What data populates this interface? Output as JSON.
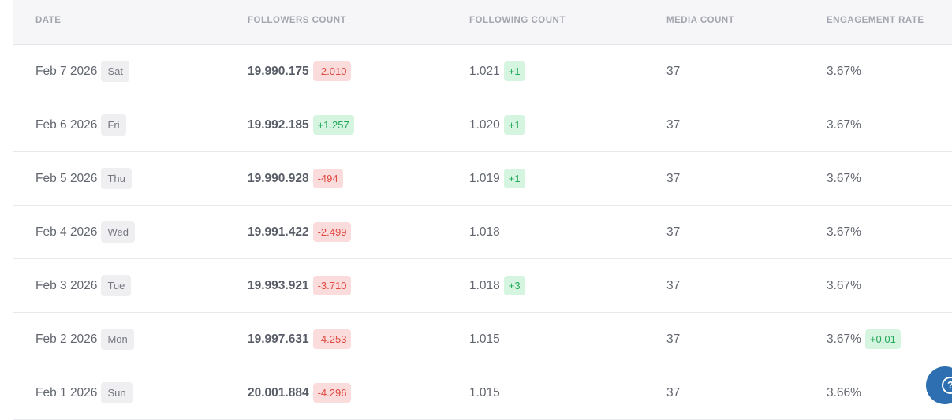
{
  "table": {
    "headers": [
      "DATE",
      "FOLLOWERS COUNT",
      "FOLLOWING COUNT",
      "MEDIA COUNT",
      "ENGAGEMENT RATE"
    ],
    "rows": [
      {
        "date": "Feb 7 2026",
        "day": "Sat",
        "followers": "19.990.175",
        "followers_delta": "-2.010",
        "followers_delta_type": "neg",
        "following": "1.021",
        "following_delta": "+1",
        "following_delta_type": "pos",
        "media": "37",
        "engagement": "3.67%",
        "engagement_delta": "",
        "engagement_delta_type": ""
      },
      {
        "date": "Feb 6 2026",
        "day": "Fri",
        "followers": "19.992.185",
        "followers_delta": "+1.257",
        "followers_delta_type": "pos",
        "following": "1.020",
        "following_delta": "+1",
        "following_delta_type": "pos",
        "media": "37",
        "engagement": "3.67%",
        "engagement_delta": "",
        "engagement_delta_type": ""
      },
      {
        "date": "Feb 5 2026",
        "day": "Thu",
        "followers": "19.990.928",
        "followers_delta": "-494",
        "followers_delta_type": "neg",
        "following": "1.019",
        "following_delta": "+1",
        "following_delta_type": "pos",
        "media": "37",
        "engagement": "3.67%",
        "engagement_delta": "",
        "engagement_delta_type": ""
      },
      {
        "date": "Feb 4 2026",
        "day": "Wed",
        "followers": "19.991.422",
        "followers_delta": "-2.499",
        "followers_delta_type": "neg",
        "following": "1.018",
        "following_delta": "",
        "following_delta_type": "",
        "media": "37",
        "engagement": "3.67%",
        "engagement_delta": "",
        "engagement_delta_type": ""
      },
      {
        "date": "Feb 3 2026",
        "day": "Tue",
        "followers": "19.993.921",
        "followers_delta": "-3.710",
        "followers_delta_type": "neg",
        "following": "1.018",
        "following_delta": "+3",
        "following_delta_type": "pos",
        "media": "37",
        "engagement": "3.67%",
        "engagement_delta": "",
        "engagement_delta_type": ""
      },
      {
        "date": "Feb 2 2026",
        "day": "Mon",
        "followers": "19.997.631",
        "followers_delta": "-4.253",
        "followers_delta_type": "neg",
        "following": "1.015",
        "following_delta": "",
        "following_delta_type": "",
        "media": "37",
        "engagement": "3.67%",
        "engagement_delta": "+0,01",
        "engagement_delta_type": "pos"
      },
      {
        "date": "Feb 1 2026",
        "day": "Sun",
        "followers": "20.001.884",
        "followers_delta": "-4.296",
        "followers_delta_type": "neg",
        "following": "1.015",
        "following_delta": "",
        "following_delta_type": "",
        "media": "37",
        "engagement": "3.66%",
        "engagement_delta": "",
        "engagement_delta_type": ""
      }
    ]
  },
  "help_button": {
    "icon": "help-question-icon",
    "glyph": "?"
  },
  "colors": {
    "negative": "#e0493f",
    "positive": "#23a85a",
    "help_button": "#2d6fb0"
  }
}
